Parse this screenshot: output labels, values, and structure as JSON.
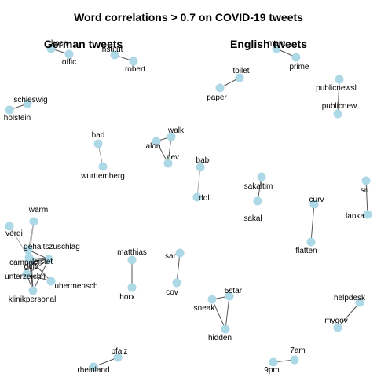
{
  "title": "Word correlations > 0.7 on COVID-19 tweets",
  "panels": [
    "German tweets",
    "English tweets"
  ],
  "colors": {
    "node": "#add8e6",
    "edge": "#555555",
    "text": "#000000"
  },
  "nodes": [
    "koch",
    "offic",
    "institut",
    "robert",
    "schleswig",
    "holstein",
    "bad",
    "wurttemberg",
    "walk",
    "alon",
    "nev",
    "babi",
    "doll",
    "warm",
    "verdi",
    "gehaltszuschlag",
    "campact",
    "geld",
    "leistet",
    "unterzeichn",
    "ubermensch",
    "klinikpersonal",
    "matthias",
    "horx",
    "sar",
    "cov",
    "pfalz",
    "rheinland",
    "ment",
    "prime",
    "toilet",
    "paper",
    "publicnewsl",
    "publicnew",
    "sakaltim",
    "sakal",
    "curv",
    "flatten",
    "sri",
    "lanka",
    "5star",
    "sneak",
    "hidden",
    "helpdesk",
    "mygov",
    "7am",
    "9pm"
  ],
  "edges": [
    [
      "koch",
      "offic"
    ],
    [
      "institut",
      "robert"
    ],
    [
      "schleswig",
      "holstein"
    ],
    [
      "bad",
      "wurttemberg"
    ],
    [
      "walk",
      "alon"
    ],
    [
      "walk",
      "nev"
    ],
    [
      "alon",
      "nev"
    ],
    [
      "babi",
      "doll"
    ],
    [
      "warm",
      "gehaltszuschlag"
    ],
    [
      "warm",
      "campact"
    ],
    [
      "warm",
      "unterzeichn"
    ],
    [
      "gehaltszuschlag",
      "campact"
    ],
    [
      "gehaltszuschlag",
      "geld"
    ],
    [
      "gehaltszuschlag",
      "leistet"
    ],
    [
      "gehaltszuschlag",
      "unterzeichn"
    ],
    [
      "gehaltszuschlag",
      "klinikpersonal"
    ],
    [
      "campact",
      "geld"
    ],
    [
      "campact",
      "leistet"
    ],
    [
      "campact",
      "unterzeichn"
    ],
    [
      "campact",
      "klinikpersonal"
    ],
    [
      "geld",
      "leistet"
    ],
    [
      "geld",
      "unterzeichn"
    ],
    [
      "geld",
      "ubermensch"
    ],
    [
      "geld",
      "klinikpersonal"
    ],
    [
      "leistet",
      "unterzeichn"
    ],
    [
      "leistet",
      "klinikpersonal"
    ],
    [
      "unterzeichn",
      "klinikpersonal"
    ],
    [
      "unterzeichn",
      "ubermensch"
    ],
    [
      "verdi",
      "campact"
    ],
    [
      "matthias",
      "horx"
    ],
    [
      "sar",
      "cov"
    ],
    [
      "pfalz",
      "rheinland"
    ],
    [
      "ment",
      "prime"
    ],
    [
      "toilet",
      "paper"
    ],
    [
      "publicnewsl",
      "publicnew"
    ],
    [
      "sakaltim",
      "sakal"
    ],
    [
      "curv",
      "flatten"
    ],
    [
      "sri",
      "lanka"
    ],
    [
      "5star",
      "sneak"
    ],
    [
      "5star",
      "hidden"
    ],
    [
      "sneak",
      "hidden"
    ],
    [
      "helpdesk",
      "mygov"
    ],
    [
      "7am",
      "9pm"
    ]
  ]
}
